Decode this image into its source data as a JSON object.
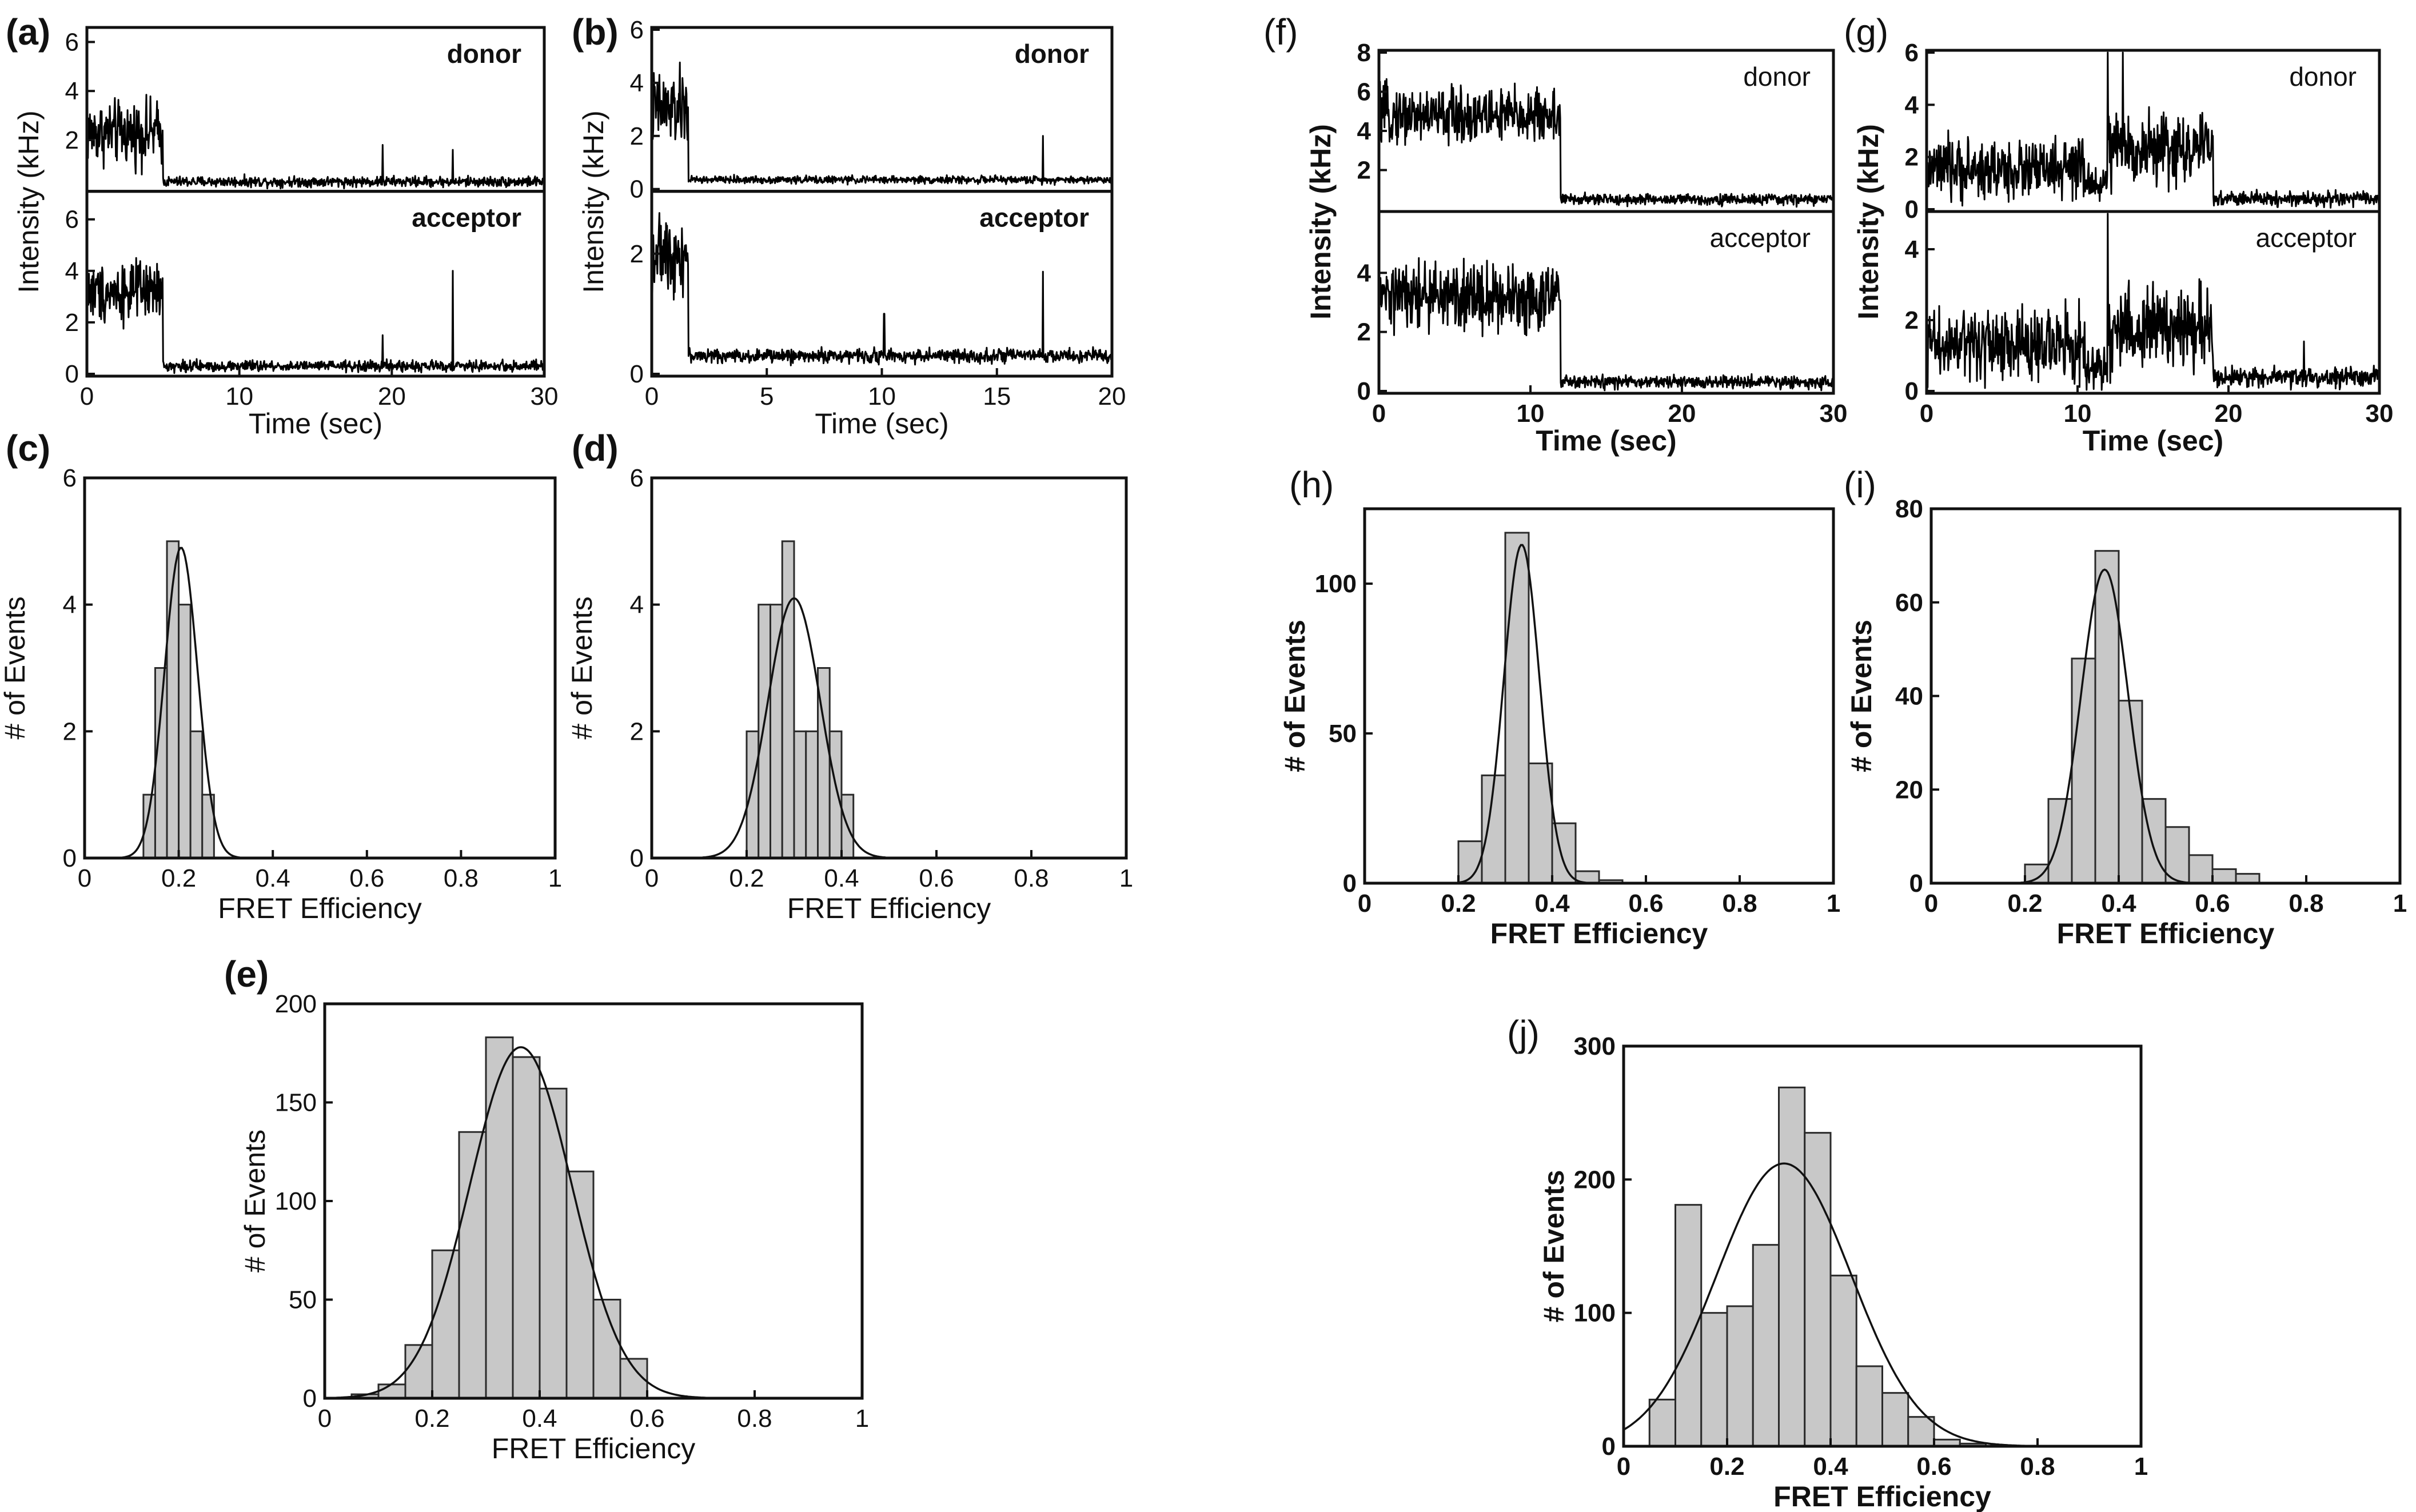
{
  "chart_data": [
    {
      "panel": "(a)",
      "type": "line",
      "xlabel": "Time (sec)",
      "ylabel": "Intensity (kHz)",
      "xlim": [
        0,
        30
      ],
      "xticks": [
        0,
        10,
        20,
        30
      ],
      "bold_axes": false,
      "channels": [
        {
          "name": "donor",
          "ylim": [
            0,
            6.5
          ],
          "yticks": [
            2,
            4,
            6
          ],
          "segments": [
            [
              0,
              5,
              2.3,
              0.9
            ],
            [
              5,
              30,
              0.3,
              0.15
            ]
          ],
          "spikes": [
            [
              19.4,
              1.8
            ],
            [
              24.0,
              1.6
            ]
          ]
        },
        {
          "name": "acceptor",
          "ylim": [
            0,
            7
          ],
          "yticks": [
            0,
            2,
            4,
            6
          ],
          "segments": [
            [
              0,
              5,
              3.2,
              0.8
            ],
            [
              5,
              30,
              0.3,
              0.15
            ]
          ],
          "spikes": [
            [
              19.4,
              1.5
            ],
            [
              24.0,
              4.0
            ]
          ]
        }
      ]
    },
    {
      "panel": "(b)",
      "type": "line",
      "xlabel": "Time (sec)",
      "ylabel": "Intensity (kHz)",
      "xlim": [
        0,
        20
      ],
      "xticks": [
        0,
        5,
        10,
        15,
        20
      ],
      "bold_axes": false,
      "channels": [
        {
          "name": "donor",
          "ylim": [
            0,
            6
          ],
          "yticks": [
            0,
            2,
            4,
            6
          ],
          "segments": [
            [
              0,
              1.6,
              3.0,
              1.0
            ],
            [
              1.6,
              20,
              0.35,
              0.1
            ]
          ],
          "spikes": [
            [
              17.0,
              2.0
            ]
          ]
        },
        {
          "name": "acceptor",
          "ylim": [
            0,
            3
          ],
          "yticks": [
            0,
            2
          ],
          "segments": [
            [
              0,
              1.6,
              2.0,
              0.4
            ],
            [
              1.6,
              20,
              0.3,
              0.08
            ]
          ],
          "spikes": [
            [
              10.1,
              1.0
            ],
            [
              17.0,
              1.7
            ]
          ]
        }
      ]
    },
    {
      "panel": "(f)",
      "type": "line",
      "xlabel": "Time (sec)",
      "ylabel": "Intensity (kHz)",
      "xlim": [
        0,
        30
      ],
      "xticks": [
        0,
        10,
        20,
        30
      ],
      "bold_axes": true,
      "channels": [
        {
          "name": "donor",
          "ylim": [
            0,
            8
          ],
          "yticks": [
            2,
            4,
            6,
            8
          ],
          "segments": [
            [
              0,
              12,
              4.8,
              1.0
            ],
            [
              12,
              30,
              0.5,
              0.2
            ]
          ],
          "spikes": []
        },
        {
          "name": "acceptor",
          "ylim": [
            0,
            6
          ],
          "yticks": [
            0,
            2,
            4
          ],
          "segments": [
            [
              0,
              12,
              3.2,
              0.8
            ],
            [
              12,
              30,
              0.3,
              0.15
            ]
          ],
          "spikes": []
        }
      ]
    },
    {
      "panel": "(g)",
      "type": "line",
      "xlabel": "Time (sec)",
      "ylabel": "Intensity (kHz)",
      "xlim": [
        0,
        30
      ],
      "xticks": [
        0,
        10,
        20,
        30
      ],
      "bold_axes": true,
      "channels": [
        {
          "name": "donor",
          "ylim": [
            0,
            6
          ],
          "yticks": [
            0,
            2,
            4,
            6
          ],
          "segments": [
            [
              0,
              10.5,
              1.5,
              0.8
            ],
            [
              10.5,
              12,
              1.0,
              0.5
            ],
            [
              12,
              19,
              2.3,
              0.9
            ],
            [
              19,
              30,
              0.4,
              0.2
            ]
          ],
          "spikes": [
            [
              12.0,
              6.0
            ],
            [
              13.0,
              6.0
            ]
          ]
        },
        {
          "name": "acceptor",
          "ylim": [
            0,
            5
          ],
          "yticks": [
            0,
            2,
            4
          ],
          "segments": [
            [
              0,
              10.5,
              1.3,
              0.7
            ],
            [
              10.5,
              12,
              0.6,
              0.4
            ],
            [
              12,
              19,
              1.8,
              0.8
            ],
            [
              19,
              30,
              0.4,
              0.2
            ]
          ],
          "spikes": [
            [
              12.0,
              5.0
            ],
            [
              25.0,
              1.4
            ]
          ]
        }
      ]
    },
    {
      "panel": "(c)",
      "type": "bar",
      "xlabel": "FRET Efficiency",
      "ylabel": "# of Events",
      "xlim": [
        0,
        1
      ],
      "ylim": [
        0,
        6
      ],
      "xticks": [
        0.0,
        0.2,
        0.4,
        0.6,
        0.8,
        1.0
      ],
      "yticks": [
        0,
        2,
        4,
        6
      ],
      "bin_edges": [
        0.125,
        0.15,
        0.175,
        0.2,
        0.225,
        0.25,
        0.275
      ],
      "values": [
        1,
        3,
        5,
        4,
        2,
        1
      ],
      "fit": {
        "mu": 0.205,
        "sigma": 0.035,
        "amp": 4.9
      },
      "bold_axes": false
    },
    {
      "panel": "(d)",
      "type": "bar",
      "xlabel": "FRET Efficiency",
      "ylabel": "# of Events",
      "xlim": [
        0,
        1
      ],
      "ylim": [
        0,
        6
      ],
      "xticks": [
        0.0,
        0.2,
        0.4,
        0.6,
        0.8,
        1.0
      ],
      "yticks": [
        0,
        2,
        4,
        6
      ],
      "bin_edges": [
        0.2,
        0.225,
        0.25,
        0.275,
        0.3,
        0.325,
        0.35,
        0.375,
        0.4,
        0.425
      ],
      "values": [
        2,
        4,
        4,
        5,
        2,
        2,
        3,
        2,
        1
      ],
      "fit": {
        "mu": 0.3,
        "sigma": 0.055,
        "amp": 4.1
      },
      "bold_axes": false
    },
    {
      "panel": "(e)",
      "type": "bar",
      "xlabel": "FRET Efficiency",
      "ylabel": "# of Events",
      "xlim": [
        0,
        1
      ],
      "ylim": [
        0,
        200
      ],
      "xticks": [
        0.0,
        0.2,
        0.4,
        0.6,
        0.8,
        1.0
      ],
      "yticks": [
        0,
        50,
        100,
        150,
        200
      ],
      "bin_edges": [
        0.05,
        0.1,
        0.15,
        0.2,
        0.25,
        0.3,
        0.35,
        0.4,
        0.45,
        0.5,
        0.55,
        0.6
      ],
      "values": [
        2,
        7,
        27,
        75,
        135,
        183,
        173,
        157,
        115,
        50,
        20
      ],
      "fit": {
        "mu": 0.365,
        "sigma": 0.095,
        "amp": 178
      },
      "bold_axes": false
    },
    {
      "panel": "(h)",
      "type": "bar",
      "xlabel": "FRET Efficiency",
      "ylabel": "# of Events",
      "xlim": [
        0,
        1
      ],
      "ylim": [
        0,
        125
      ],
      "xticks": [
        0.0,
        0.2,
        0.4,
        0.6,
        0.8,
        1.0
      ],
      "yticks": [
        0,
        50,
        100
      ],
      "bin_edges": [
        0.2,
        0.25,
        0.3,
        0.35,
        0.4,
        0.45,
        0.5,
        0.55
      ],
      "values": [
        14,
        36,
        117,
        40,
        20,
        4,
        1
      ],
      "fit": {
        "mu": 0.335,
        "sigma": 0.038,
        "amp": 113
      },
      "bold_axes": true
    },
    {
      "panel": "(i)",
      "type": "bar",
      "xlabel": "FRET Efficiency",
      "ylabel": "# of Events",
      "xlim": [
        0,
        1
      ],
      "ylim": [
        0,
        80
      ],
      "xticks": [
        0.0,
        0.2,
        0.4,
        0.6,
        0.8,
        1.0
      ],
      "yticks": [
        0,
        20,
        40,
        60,
        80
      ],
      "bin_edges": [
        0.2,
        0.25,
        0.3,
        0.35,
        0.4,
        0.45,
        0.5,
        0.55,
        0.6,
        0.65,
        0.7
      ],
      "values": [
        4,
        18,
        48,
        71,
        39,
        18,
        12,
        6,
        3,
        2
      ],
      "fit": {
        "mu": 0.37,
        "sigma": 0.05,
        "amp": 67
      },
      "bold_axes": true
    },
    {
      "panel": "(j)",
      "type": "bar",
      "xlabel": "FRET Efficiency",
      "ylabel": "# of Events",
      "xlim": [
        0,
        1
      ],
      "ylim": [
        0,
        300
      ],
      "xticks": [
        0.0,
        0.2,
        0.4,
        0.6,
        0.8,
        1.0
      ],
      "yticks": [
        0,
        100,
        200,
        300
      ],
      "bin_edges": [
        0.05,
        0.1,
        0.15,
        0.2,
        0.25,
        0.3,
        0.35,
        0.4,
        0.45,
        0.5,
        0.55,
        0.6,
        0.65,
        0.7
      ],
      "values": [
        35,
        181,
        100,
        105,
        151,
        269,
        235,
        128,
        60,
        40,
        22,
        5,
        2
      ],
      "fit": {
        "mu": 0.31,
        "sigma": 0.13,
        "amp": 212
      },
      "bold_axes": true
    }
  ]
}
